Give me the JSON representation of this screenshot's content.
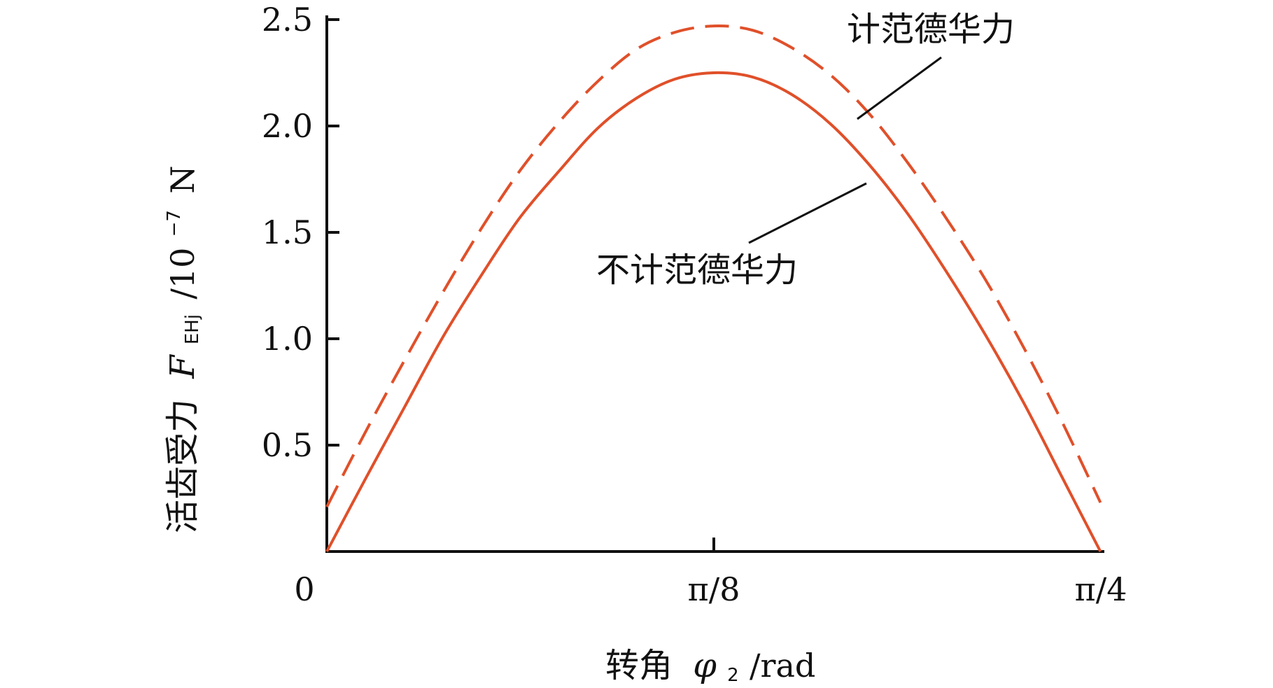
{
  "chart_data": {
    "type": "line",
    "xlabel": {
      "prefix": "转角",
      "symbol": "φ",
      "subscript": "2",
      "unit": "/rad"
    },
    "ylabel": {
      "prefix": "活齿受力",
      "symbol": "F",
      "subscript": "EHj",
      "unit_pre": "/10",
      "unit_exp": "−7",
      "unit_post": "N"
    },
    "x_ticks": [
      "0",
      "π/8",
      "π/4"
    ],
    "x_tick_values": [
      0,
      0.392699,
      0.785398
    ],
    "y_ticks": [
      "0.5",
      "1.0",
      "1.5",
      "2.0",
      "2.5"
    ],
    "y_tick_values": [
      0.5,
      1.0,
      1.5,
      2.0,
      2.5
    ],
    "xlim": [
      0,
      0.785398
    ],
    "ylim": [
      0,
      2.5
    ],
    "series": [
      {
        "name": "不计范德华力",
        "style": "solid",
        "color": "#e0502a",
        "x": [
          0,
          0.039,
          0.079,
          0.118,
          0.157,
          0.196,
          0.236,
          0.275,
          0.314,
          0.353,
          0.3927,
          0.432,
          0.471,
          0.511,
          0.55,
          0.589,
          0.628,
          0.668,
          0.707,
          0.746,
          0.785
        ],
        "y": [
          0.0,
          0.34,
          0.68,
          1.01,
          1.3,
          1.57,
          1.79,
          1.99,
          2.13,
          2.22,
          2.25,
          2.23,
          2.15,
          2.01,
          1.82,
          1.59,
          1.32,
          1.02,
          0.7,
          0.35,
          0.0
        ]
      },
      {
        "name": "计范德华力",
        "style": "dashed",
        "color": "#e0502a",
        "x": [
          0,
          0.039,
          0.079,
          0.118,
          0.157,
          0.196,
          0.236,
          0.275,
          0.314,
          0.353,
          0.3927,
          0.432,
          0.471,
          0.511,
          0.55,
          0.589,
          0.628,
          0.668,
          0.707,
          0.746,
          0.785
        ],
        "y": [
          0.21,
          0.56,
          0.9,
          1.22,
          1.52,
          1.79,
          2.02,
          2.21,
          2.36,
          2.44,
          2.47,
          2.45,
          2.37,
          2.24,
          2.06,
          1.83,
          1.57,
          1.28,
          0.96,
          0.61,
          0.23
        ]
      }
    ],
    "annotations": [
      {
        "text": "计范德华力",
        "series": "计范德华力"
      },
      {
        "text": "不计范德华力",
        "series": "不计范德华力"
      }
    ]
  }
}
